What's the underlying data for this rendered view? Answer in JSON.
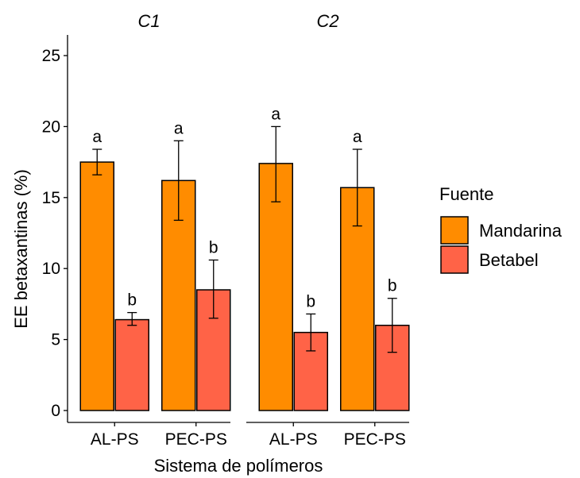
{
  "chart_data": {
    "type": "bar",
    "xlabel": "Sistema de polímeros",
    "ylabel": "EE betaxantinas (%)",
    "ylim": [
      0,
      25
    ],
    "yticks": [
      "0",
      "5",
      "10",
      "15",
      "20",
      "25"
    ],
    "legend": {
      "title": "Fuente",
      "placement": "right",
      "entries": [
        {
          "name": "Mandarina",
          "color": "#FF8C00"
        },
        {
          "name": "Betabel",
          "color": "#FF6347"
        }
      ]
    },
    "facets": [
      {
        "title": "C1",
        "categories": [
          "AL-PS",
          "PEC-PS"
        ],
        "series": [
          {
            "name": "Mandarina",
            "values": [
              17.5,
              16.2
            ],
            "err_low": [
              16.6,
              13.4
            ],
            "err_high": [
              18.4,
              19.0
            ],
            "labels": [
              "a",
              "a"
            ]
          },
          {
            "name": "Betabel",
            "values": [
              6.4,
              8.5
            ],
            "err_low": [
              6.0,
              6.5
            ],
            "err_high": [
              6.9,
              10.6
            ],
            "labels": [
              "b",
              "b"
            ]
          }
        ]
      },
      {
        "title": "C2",
        "categories": [
          "AL-PS",
          "PEC-PS"
        ],
        "series": [
          {
            "name": "Mandarina",
            "values": [
              17.4,
              15.7
            ],
            "err_low": [
              14.7,
              13.0
            ],
            "err_high": [
              20.0,
              18.4
            ],
            "labels": [
              "a",
              "a"
            ]
          },
          {
            "name": "Betabel",
            "values": [
              5.5,
              6.0
            ],
            "err_low": [
              4.2,
              4.1
            ],
            "err_high": [
              6.8,
              7.9
            ],
            "labels": [
              "b",
              "b"
            ]
          }
        ]
      }
    ]
  }
}
